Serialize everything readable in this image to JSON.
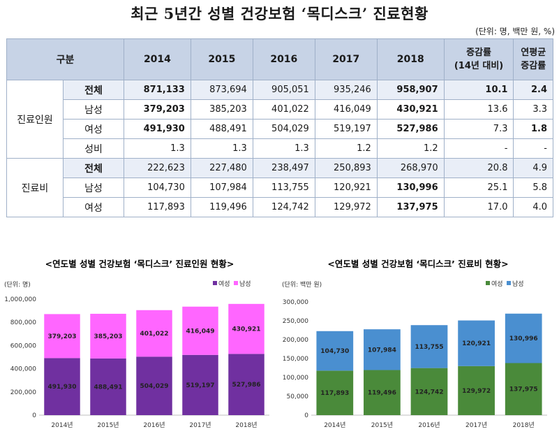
{
  "title": "최근 5년간  성별 건강보험 ‘목디스크’ 진료현황",
  "unit_note": "(단위: 명, 백만 원, %)",
  "table": {
    "header": {
      "category": "구분",
      "years": [
        "2014",
        "2015",
        "2016",
        "2017",
        "2018"
      ],
      "change_line1": "증감률",
      "change_line2": "(14년 대비)",
      "cagr_line1": "연평균",
      "cagr_line2": "증감률"
    },
    "groups": [
      {
        "name": "진료인원",
        "rows": [
          {
            "label": "전체",
            "values": [
              "871,133",
              "873,694",
              "905,051",
              "935,246",
              "958,907",
              "10.1",
              "2.4"
            ]
          },
          {
            "label": "남성",
            "values": [
              "379,203",
              "385,203",
              "401,022",
              "416,049",
              "430,921",
              "13.6",
              "3.3"
            ]
          },
          {
            "label": "여성",
            "values": [
              "491,930",
              "488,491",
              "504,029",
              "519,197",
              "527,986",
              "7.3",
              "1.8"
            ]
          },
          {
            "label": "성비",
            "values": [
              "1.3",
              "1.3",
              "1.3",
              "1.2",
              "1.2",
              "-",
              "-"
            ]
          }
        ]
      },
      {
        "name": "진료비",
        "rows": [
          {
            "label": "전체",
            "values": [
              "222,623",
              "227,480",
              "238,497",
              "250,893",
              "268,970",
              "20.8",
              "4.9"
            ]
          },
          {
            "label": "남성",
            "values": [
              "104,730",
              "107,984",
              "113,755",
              "120,921",
              "130,996",
              "25.1",
              "5.8"
            ]
          },
          {
            "label": "여성",
            "values": [
              "117,893",
              "119,496",
              "124,742",
              "129,972",
              "137,975",
              "17.0",
              "4.0"
            ]
          }
        ]
      }
    ]
  },
  "chart_data": [
    {
      "type": "bar",
      "stacked": true,
      "title": "<연도별 성별 건강보험 ‘목디스크’ 진료인원 현황>",
      "unit": "(단위: 명)",
      "categories": [
        "2014년",
        "2015년",
        "2016년",
        "2017년",
        "2018년"
      ],
      "series": [
        {
          "name": "여성",
          "values": [
            491930,
            488491,
            504029,
            519197,
            527986
          ],
          "color": "#7030a0"
        },
        {
          "name": "남성",
          "values": [
            379203,
            385203,
            401022,
            416049,
            430921
          ],
          "color": "#ff66ff"
        }
      ],
      "ylim": [
        0,
        1000000
      ],
      "yticks": [
        0,
        200000,
        400000,
        600000,
        800000,
        1000000
      ],
      "ytick_labels": [
        "0",
        "200,000",
        "400,000",
        "600,000",
        "800,000",
        "1,000,000"
      ],
      "legend": "top-right",
      "grid": false
    },
    {
      "type": "bar",
      "stacked": true,
      "title": "<연도별 성별 건강보험 ‘목디스크’ 진료비 현황>",
      "unit": "(단위: 백만 원)",
      "categories": [
        "2014년",
        "2015년",
        "2016년",
        "2017년",
        "2018년"
      ],
      "series": [
        {
          "name": "여성",
          "values": [
            117893,
            119496,
            124742,
            129972,
            137975
          ],
          "color": "#4a8a3a"
        },
        {
          "name": "남성",
          "values": [
            104730,
            107984,
            113755,
            120921,
            130996
          ],
          "color": "#4a8fd0"
        }
      ],
      "ylim": [
        0,
        300000
      ],
      "yticks": [
        0,
        50000,
        100000,
        150000,
        200000,
        250000,
        300000
      ],
      "ytick_labels": [
        "0",
        "50,000",
        "100,000",
        "150,000",
        "200,000",
        "250,000",
        "300,000"
      ],
      "legend": "top-right",
      "grid": false
    }
  ]
}
